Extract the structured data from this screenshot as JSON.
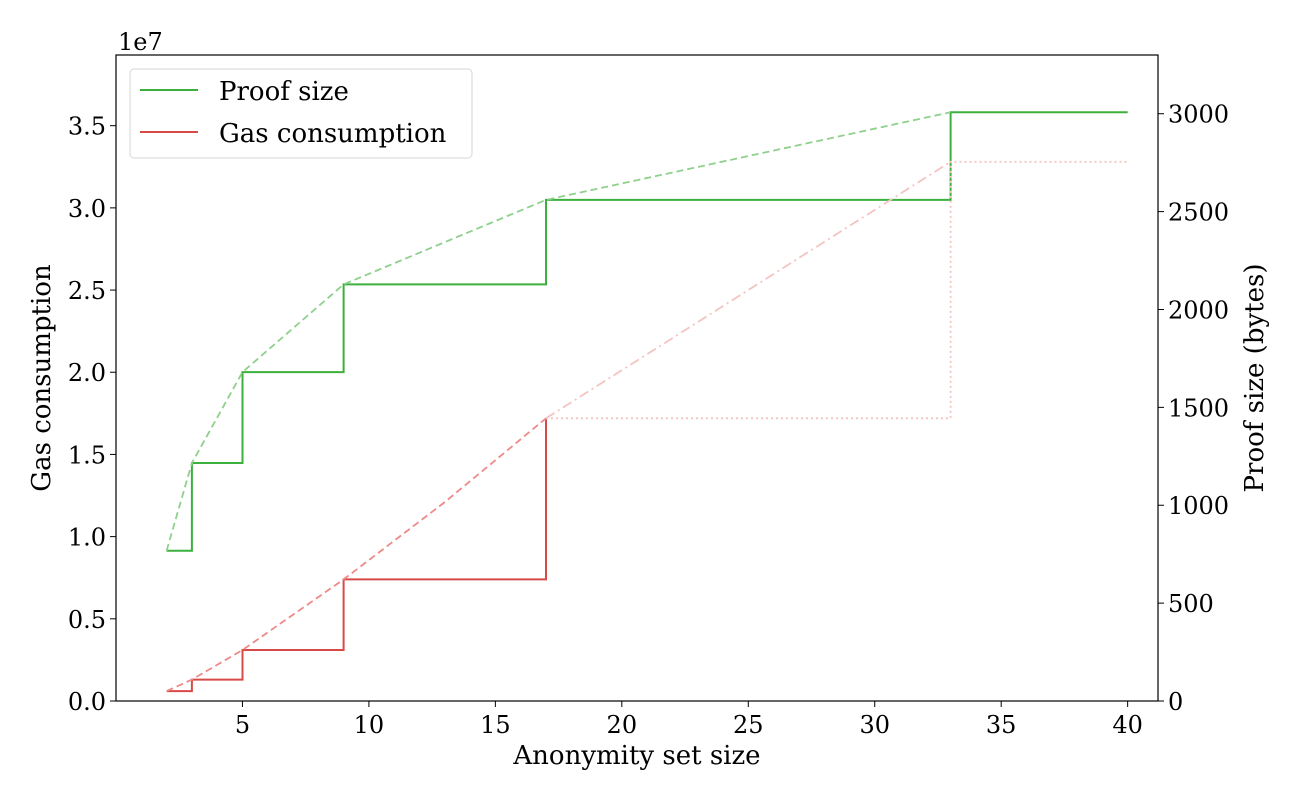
{
  "chart_data": {
    "type": "line",
    "xlabel": "Anonymity set size",
    "ylabel": "Gas consumption",
    "y2label": "Proof size (bytes)",
    "y_offset_label": "1e7",
    "xlim": [
      0,
      41.2
    ],
    "ylim": [
      0,
      3.93
    ],
    "y2lim": [
      0,
      3300
    ],
    "x_ticks": [
      5,
      10,
      15,
      20,
      25,
      30,
      35,
      40
    ],
    "y_ticks": [
      0.0,
      0.5,
      1.0,
      1.5,
      2.0,
      2.5,
      3.0,
      3.5
    ],
    "y_tick_labels": [
      "0.0",
      "0.5",
      "1.0",
      "1.5",
      "2.0",
      "2.5",
      "3.0",
      "3.5"
    ],
    "y2_ticks": [
      0,
      500,
      1000,
      1500,
      2000,
      2500,
      3000
    ],
    "legend": {
      "position": "top-left",
      "entries": [
        "Proof size",
        "Gas consumption"
      ]
    },
    "colors": {
      "proof": "#3cb03c",
      "proof_trend": "#8fd08c",
      "gas": "#d84a48",
      "gas_trend": "#ee8a88",
      "gas_trend_light": "#f4c4c2"
    },
    "series": [
      {
        "name": "Proof size",
        "axis": "right",
        "style": "step",
        "x": [
          2,
          3,
          3,
          5,
          5,
          9,
          9,
          17,
          17,
          33,
          33,
          40
        ],
        "y": [
          768,
          768,
          1216,
          1216,
          1680,
          1680,
          2128,
          2128,
          2560,
          2560,
          3008,
          3008
        ]
      },
      {
        "axis": "right",
        "style": "dashed",
        "x": [
          2,
          3,
          5,
          9,
          17,
          33
        ],
        "y": [
          768,
          1216,
          1680,
          2128,
          2560,
          3008
        ]
      },
      {
        "name": "Gas consumption",
        "axis": "left",
        "style": "step",
        "x": [
          2,
          3,
          3,
          5,
          5,
          9,
          9,
          17,
          17
        ],
        "y": [
          0.06,
          0.06,
          0.13,
          0.13,
          0.31,
          0.31,
          0.74,
          0.74,
          1.72
        ]
      },
      {
        "axis": "left",
        "style": "dashed",
        "x": [
          2,
          3,
          5,
          9,
          13,
          17
        ],
        "y": [
          0.06,
          0.13,
          0.31,
          0.74,
          1.21,
          1.72
        ]
      },
      {
        "axis": "left",
        "style": "dashdot",
        "x": [
          17,
          33
        ],
        "y": [
          1.72,
          3.28
        ]
      },
      {
        "axis": "left",
        "style": "dotted",
        "x": [
          17,
          33,
          33,
          40
        ],
        "y": [
          1.72,
          1.72,
          3.28,
          3.28
        ]
      }
    ]
  }
}
